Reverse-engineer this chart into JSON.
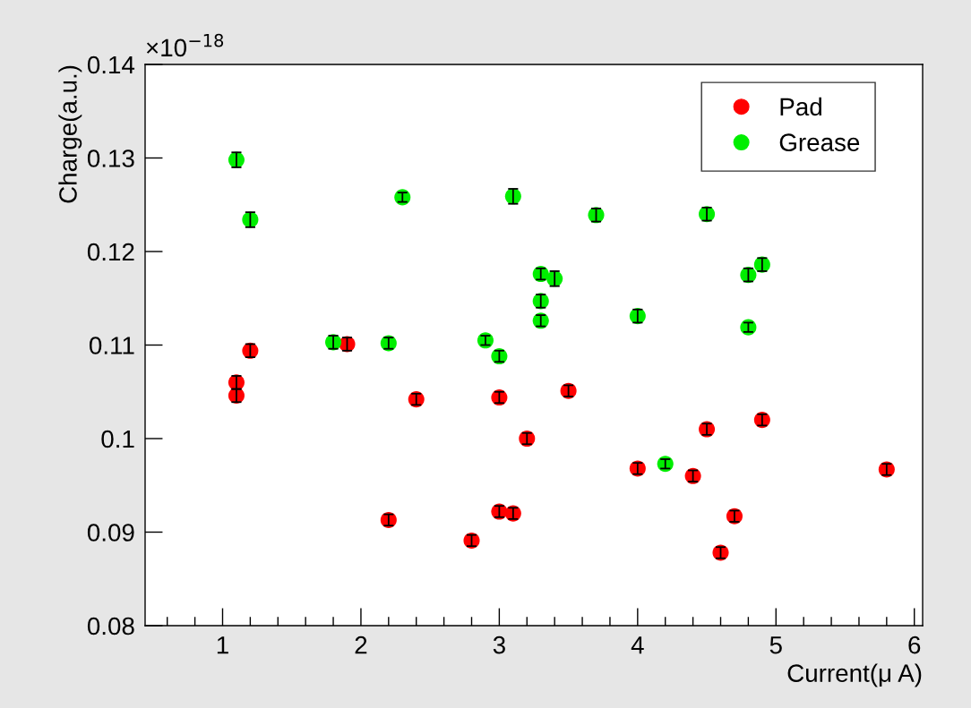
{
  "chart_data": {
    "type": "scatter",
    "xlabel": "Current(μ A)",
    "ylabel": "Charge(a.u.)",
    "annotations": [
      "×10$^{−18}$"
    ],
    "xlim": [
      0.44,
      6.06
    ],
    "xticks": [
      1,
      2,
      3,
      4,
      5,
      6
    ],
    "ylim": [
      0.08,
      0.14
    ],
    "yticks": [
      0.08,
      0.09,
      0.1,
      0.11,
      0.12,
      0.13,
      0.14
    ],
    "grid": false,
    "legend": "top right",
    "marker": "circle",
    "series": [
      {
        "name": "Pad",
        "color": "#ff0000",
        "x": [
          1.1,
          1.1,
          1.2,
          1.9,
          2.2,
          2.4,
          2.8,
          3.0,
          3.0,
          3.1,
          3.2,
          3.5,
          4.0,
          4.4,
          4.5,
          4.6,
          4.7,
          4.9,
          5.8
        ],
        "values": [
          0.106,
          0.1046,
          0.1094,
          0.1101,
          0.0913,
          0.1042,
          0.0891,
          0.1044,
          0.0922,
          0.092,
          0.1,
          0.1051,
          0.0968,
          0.096,
          0.101,
          0.0878,
          0.0917,
          0.102,
          0.0967
        ],
        "errors": [
          0.0007,
          0.0007,
          0.0007,
          0.0007,
          0.0006,
          0.0006,
          0.0006,
          0.0006,
          0.0006,
          0.0006,
          0.0006,
          0.0006,
          0.0006,
          0.0006,
          0.0006,
          0.0006,
          0.0006,
          0.0006,
          0.0006
        ]
      },
      {
        "name": "Grease",
        "color": "#00ee00",
        "x": [
          1.1,
          1.2,
          1.8,
          2.2,
          2.3,
          2.9,
          3.0,
          3.1,
          3.3,
          3.3,
          3.3,
          3.4,
          3.7,
          4.0,
          4.2,
          4.5,
          4.8,
          4.8,
          4.9
        ],
        "values": [
          0.1298,
          0.1234,
          0.1103,
          0.1102,
          0.1258,
          0.1105,
          0.1088,
          0.1259,
          0.1176,
          0.1147,
          0.1126,
          0.1171,
          0.1239,
          0.1131,
          0.0973,
          0.124,
          0.1175,
          0.1119,
          0.1186
        ],
        "errors": [
          0.0008,
          0.0008,
          0.0007,
          0.0006,
          0.0005,
          0.0005,
          0.0006,
          0.0008,
          0.0006,
          0.0007,
          0.0006,
          0.0008,
          0.0007,
          0.0007,
          0.0005,
          0.0007,
          0.0007,
          0.0005,
          0.0007
        ]
      }
    ]
  }
}
